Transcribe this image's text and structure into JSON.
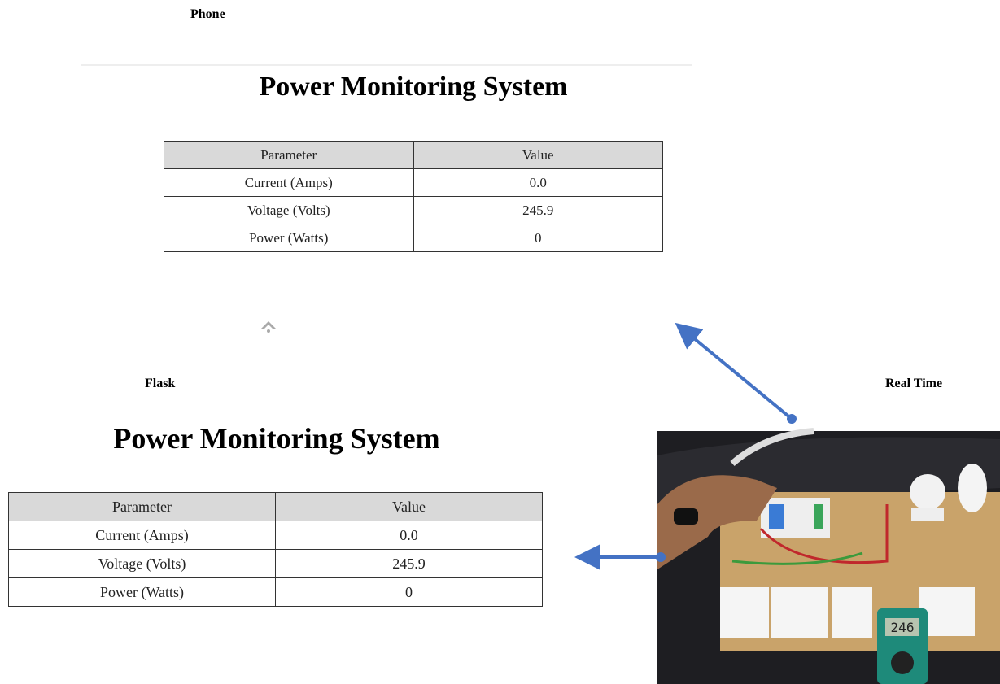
{
  "labels": {
    "phone": "Phone",
    "flask": "Flask",
    "real_time": "Real Time"
  },
  "phone_view": {
    "title": "Power Monitoring System",
    "table": {
      "header": [
        "Parameter",
        "Value"
      ],
      "rows": [
        [
          "Current (Amps)",
          "0.0"
        ],
        [
          "Voltage (Volts)",
          "245.9"
        ],
        [
          "Power (Watts)",
          "0"
        ]
      ]
    }
  },
  "flask_view": {
    "title": "Power Monitoring System",
    "table": {
      "header": [
        "Parameter",
        "Value"
      ],
      "rows": [
        [
          "Current (Amps)",
          "0.0"
        ],
        [
          "Voltage (Volts)",
          "245.9"
        ],
        [
          "Power (Watts)",
          "0"
        ]
      ]
    }
  },
  "photo": {
    "meter_reading": "246"
  }
}
